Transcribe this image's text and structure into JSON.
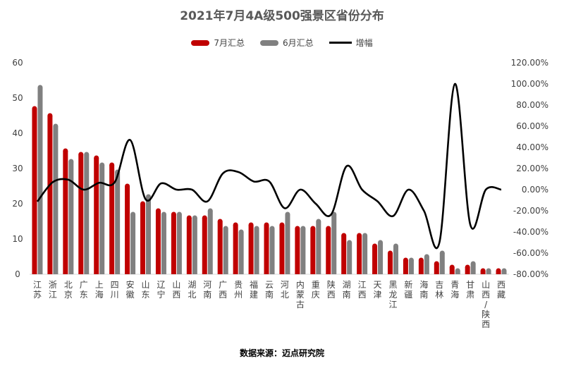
{
  "chart_data": {
    "type": "bar",
    "title": "2021年7月4A级500强景区省份分布",
    "categories": [
      "江苏",
      "浙江",
      "北京",
      "广东",
      "上海",
      "四川",
      "安徽",
      "山东",
      "辽宁",
      "山西",
      "湖北",
      "河南",
      "广西",
      "贵州",
      "福建",
      "云南",
      "河北",
      "内蒙古",
      "重庆",
      "陕西",
      "湖南",
      "江西",
      "天津",
      "黑龙江",
      "新疆",
      "海南",
      "吉林",
      "青海",
      "甘肃",
      "山西/陕西",
      "西藏"
    ],
    "series": [
      {
        "name": "7月汇总",
        "color": "#C00000",
        "axis": "left",
        "values": [
          47,
          45,
          35,
          34,
          33,
          31,
          25,
          20,
          18,
          17,
          16,
          16,
          15,
          14,
          14,
          14,
          14,
          13,
          13,
          13,
          11,
          11,
          8,
          6,
          4,
          4,
          3,
          2,
          2,
          1,
          1
        ]
      },
      {
        "name": "6月汇总",
        "color": "#808080",
        "axis": "left",
        "values": [
          53,
          42,
          32,
          34,
          31,
          29,
          17,
          22,
          17,
          17,
          16,
          18,
          13,
          12,
          13,
          13,
          17,
          13,
          15,
          17,
          9,
          11,
          9,
          8,
          4,
          5,
          6,
          1,
          3,
          1,
          1
        ]
      },
      {
        "name": "增幅",
        "color": "#000000",
        "axis": "right",
        "type": "line",
        "values": [
          -11.3,
          7.1,
          9.4,
          0,
          6.5,
          6.9,
          47,
          -9.1,
          5.9,
          0,
          0,
          -11.1,
          15.4,
          16.7,
          7.7,
          7.7,
          -17.6,
          0,
          -13.3,
          -23.5,
          22.2,
          0,
          -11.1,
          -25,
          0,
          -20,
          -50,
          100,
          -33.3,
          0,
          0
        ]
      }
    ],
    "y_left": {
      "min": 0,
      "max": 60,
      "ticks": [
        "0",
        "10",
        "20",
        "30",
        "40",
        "50",
        "60"
      ]
    },
    "y_right": {
      "min": -80,
      "max": 120,
      "ticks": [
        "-80.00%",
        "-60.00%",
        "-40.00%",
        "-20.00%",
        "0.00%",
        "20.00%",
        "40.00%",
        "60.00%",
        "80.00%",
        "100.00%",
        "120.00%"
      ]
    },
    "legend_position": "top",
    "grid": false
  },
  "source": "数据来源：迈点研究院"
}
